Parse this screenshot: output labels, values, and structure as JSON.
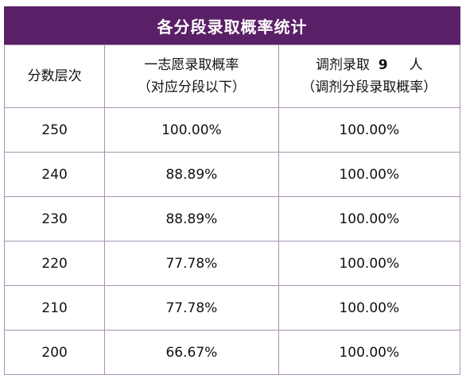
{
  "title": "各分段录取概率统计",
  "header": {
    "col1": "分数层次",
    "col2_line1": "一志愿录取概率",
    "col2_line2": "（对应分段以下）",
    "col3_prefix": "调剂录取",
    "col3_num": "9",
    "col3_suffix": "人",
    "col3_line2": "（调剂分段录取概率）"
  },
  "rows": [
    {
      "score": "250",
      "first": "100.00%",
      "adjust": "100.00%"
    },
    {
      "score": "240",
      "first": "88.89%",
      "adjust": "100.00%"
    },
    {
      "score": "230",
      "first": "88.89%",
      "adjust": "100.00%"
    },
    {
      "score": "220",
      "first": "77.78%",
      "adjust": "100.00%"
    },
    {
      "score": "210",
      "first": "77.78%",
      "adjust": "100.00%"
    },
    {
      "score": "200",
      "first": "66.67%",
      "adjust": "100.00%"
    }
  ],
  "colors": {
    "title_bg": "#5a2067",
    "border": "#a893b0"
  }
}
